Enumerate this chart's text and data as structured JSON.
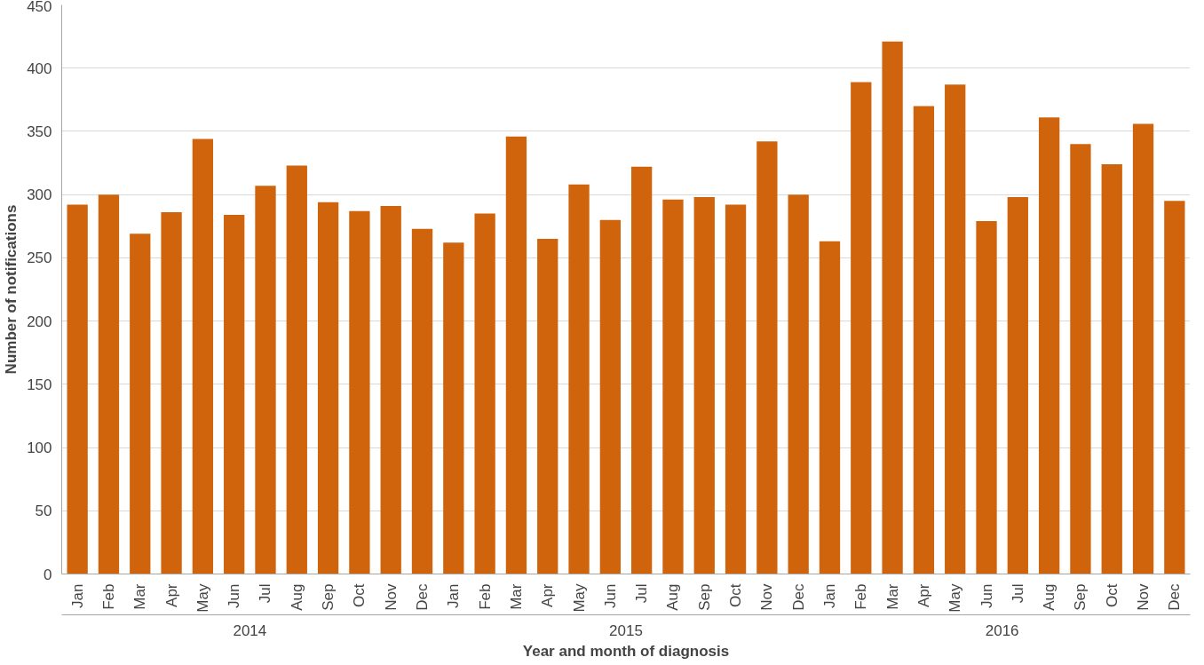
{
  "chart_data": {
    "type": "bar",
    "xlabel": "Year and month of diagnosis",
    "ylabel": "Number of notifications",
    "categories": [
      "Jan",
      "Feb",
      "Mar",
      "Apr",
      "May",
      "Jun",
      "Jul",
      "Aug",
      "Sep",
      "Oct",
      "Nov",
      "Dec",
      "Jan",
      "Feb",
      "Mar",
      "Apr",
      "May",
      "Jun",
      "Jul",
      "Aug",
      "Sep",
      "Oct",
      "Nov",
      "Dec",
      "Jan",
      "Feb",
      "Mar",
      "Apr",
      "May",
      "Jun",
      "Jul",
      "Aug",
      "Sep",
      "Oct",
      "Nov",
      "Dec"
    ],
    "values": [
      292,
      300,
      269,
      286,
      344,
      284,
      307,
      323,
      294,
      287,
      291,
      273,
      262,
      285,
      346,
      265,
      308,
      280,
      322,
      296,
      298,
      292,
      342,
      300,
      263,
      389,
      421,
      370,
      387,
      279,
      298,
      361,
      340,
      324,
      356,
      295
    ],
    "color": "#d0640d",
    "annotations": [
      "2014",
      "2015",
      "2016"
    ],
    "ylim": [
      0,
      450
    ],
    "yticks": [
      0,
      50,
      100,
      150,
      200,
      250,
      300,
      350,
      400,
      450
    ],
    "grid": "y"
  }
}
